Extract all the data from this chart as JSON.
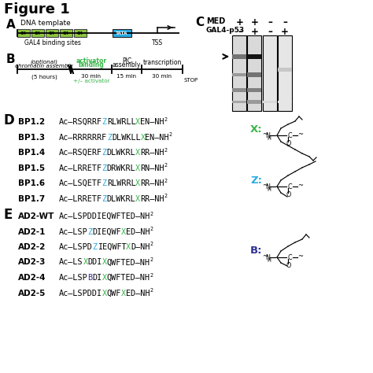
{
  "color_Z": "#29ABE2",
  "color_X": "#39b54a",
  "color_B": "#2e3192",
  "color_activator": "#39b54a",
  "g4_color": "#8dc63f",
  "tata_color": "#29ABE2",
  "bp_entries": [
    {
      "name": "BP1.2",
      "parts": [
        {
          "t": "Ac–RSQRRF",
          "c": "black"
        },
        {
          "t": "Z",
          "c": "#29ABE2"
        },
        {
          "t": "RLWRLL",
          "c": "black"
        },
        {
          "t": "X",
          "c": "#39b54a"
        },
        {
          "t": "EN–NH",
          "c": "black"
        }
      ]
    },
    {
      "name": "BP1.3",
      "parts": [
        {
          "t": "Ac–RRRRRRF",
          "c": "black"
        },
        {
          "t": "Z",
          "c": "#29ABE2"
        },
        {
          "t": "DLWKLL",
          "c": "black"
        },
        {
          "t": "X",
          "c": "#39b54a"
        },
        {
          "t": "EN–NH",
          "c": "black"
        }
      ]
    },
    {
      "name": "BP1.4",
      "parts": [
        {
          "t": "Ac–RSQERF",
          "c": "black"
        },
        {
          "t": "Z",
          "c": "#29ABE2"
        },
        {
          "t": "DLWKRL",
          "c": "black"
        },
        {
          "t": "X",
          "c": "#39b54a"
        },
        {
          "t": "RR–NH",
          "c": "black"
        }
      ]
    },
    {
      "name": "BP1.5",
      "parts": [
        {
          "t": "Ac–LRRETF",
          "c": "black"
        },
        {
          "t": "Z",
          "c": "#29ABE2"
        },
        {
          "t": "DRWKRL",
          "c": "black"
        },
        {
          "t": "X",
          "c": "#39b54a"
        },
        {
          "t": "RN–NH",
          "c": "black"
        }
      ]
    },
    {
      "name": "BP1.6",
      "parts": [
        {
          "t": "Ac–LSQETF",
          "c": "black"
        },
        {
          "t": "Z",
          "c": "#29ABE2"
        },
        {
          "t": "RLWRRL",
          "c": "black"
        },
        {
          "t": "X",
          "c": "#39b54a"
        },
        {
          "t": "RR–NH",
          "c": "black"
        }
      ]
    },
    {
      "name": "BP1.7",
      "parts": [
        {
          "t": "Ac–LRRETF",
          "c": "black"
        },
        {
          "t": "Z",
          "c": "#29ABE2"
        },
        {
          "t": "DLWKRL",
          "c": "black"
        },
        {
          "t": "X",
          "c": "#39b54a"
        },
        {
          "t": "RR–NH",
          "c": "black"
        }
      ]
    }
  ],
  "ad2_entries": [
    {
      "name": "AD2-WT",
      "parts": [
        {
          "t": "Ac–LSPDDIEQWFTED–NH",
          "c": "black"
        }
      ]
    },
    {
      "name": "AD2-1",
      "parts": [
        {
          "t": "Ac–LSP",
          "c": "black"
        },
        {
          "t": "Z",
          "c": "#29ABE2"
        },
        {
          "t": "DIEQWF",
          "c": "black"
        },
        {
          "t": "X",
          "c": "#39b54a"
        },
        {
          "t": "ED–NH",
          "c": "black"
        }
      ]
    },
    {
      "name": "AD2-2",
      "parts": [
        {
          "t": "Ac–LSPD",
          "c": "black"
        },
        {
          "t": "Z",
          "c": "#29ABE2"
        },
        {
          "t": "IEQWFT",
          "c": "black"
        },
        {
          "t": "X",
          "c": "#39b54a"
        },
        {
          "t": "D–NH",
          "c": "black"
        }
      ]
    },
    {
      "name": "AD2-3",
      "parts": [
        {
          "t": "Ac–LS",
          "c": "black"
        },
        {
          "t": "X",
          "c": "#39b54a"
        },
        {
          "t": "DDI",
          "c": "black"
        },
        {
          "t": "X",
          "c": "#39b54a"
        },
        {
          "t": "QWFTED–NH",
          "c": "black"
        }
      ]
    },
    {
      "name": "AD2-4",
      "parts": [
        {
          "t": "Ac–LSP",
          "c": "black"
        },
        {
          "t": "B",
          "c": "#2e3192"
        },
        {
          "t": "DI",
          "c": "black"
        },
        {
          "t": "X",
          "c": "#39b54a"
        },
        {
          "t": "QWFTED–NH",
          "c": "black"
        }
      ]
    },
    {
      "name": "AD2-5",
      "parts": [
        {
          "t": "Ac–LSPDDI",
          "c": "black"
        },
        {
          "t": "X",
          "c": "#39b54a"
        },
        {
          "t": "QWF",
          "c": "black"
        },
        {
          "t": "X",
          "c": "#39b54a"
        },
        {
          "t": "ED–NH",
          "c": "black"
        }
      ]
    }
  ]
}
